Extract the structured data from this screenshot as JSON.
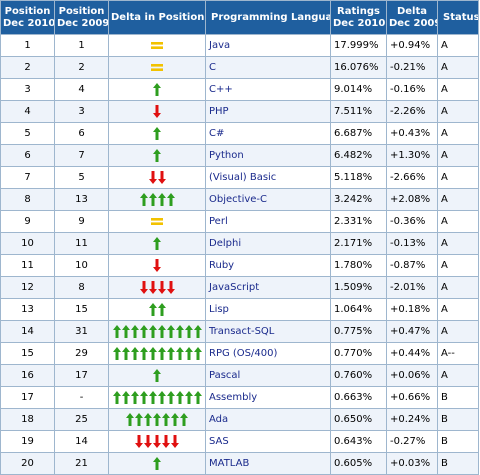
{
  "headers": {
    "pos_2010": "Position Dec 2010",
    "pos_2010_l1": "Position",
    "pos_2010_l2": "Dec 2010",
    "pos_2009_l1": "Position",
    "pos_2009_l2": "Dec 2009",
    "delta_pos": "Delta in Position",
    "language": "Programming Language",
    "ratings_l1": "Ratings",
    "ratings_l2": "Dec 2010",
    "delta_l1": "Delta",
    "delta_l2": "Dec 2009",
    "status": "Status"
  },
  "colors": {
    "header_bg": "#1f5f9f",
    "up_arrow": "#2e9e1f",
    "down_arrow": "#e01010",
    "equal": "#f2c200",
    "language_text": "#1a2a8c"
  },
  "rows": [
    {
      "pos2010": "1",
      "pos2009": "1",
      "delta": "equal",
      "count": 1,
      "lang": "Java",
      "rating": "17.999%",
      "change": "+0.94%",
      "status": "A"
    },
    {
      "pos2010": "2",
      "pos2009": "2",
      "delta": "equal",
      "count": 1,
      "lang": "C",
      "rating": "16.076%",
      "change": "-0.21%",
      "status": "A"
    },
    {
      "pos2010": "3",
      "pos2009": "4",
      "delta": "up",
      "count": 1,
      "lang": "C++",
      "rating": "9.014%",
      "change": "-0.16%",
      "status": "A"
    },
    {
      "pos2010": "4",
      "pos2009": "3",
      "delta": "down",
      "count": 1,
      "lang": "PHP",
      "rating": "7.511%",
      "change": "-2.26%",
      "status": "A"
    },
    {
      "pos2010": "5",
      "pos2009": "6",
      "delta": "up",
      "count": 1,
      "lang": "C#",
      "rating": "6.687%",
      "change": "+0.43%",
      "status": "A"
    },
    {
      "pos2010": "6",
      "pos2009": "7",
      "delta": "up",
      "count": 1,
      "lang": "Python",
      "rating": "6.482%",
      "change": "+1.30%",
      "status": "A"
    },
    {
      "pos2010": "7",
      "pos2009": "5",
      "delta": "down",
      "count": 2,
      "lang": "(Visual) Basic",
      "rating": "5.118%",
      "change": "-2.66%",
      "status": "A"
    },
    {
      "pos2010": "8",
      "pos2009": "13",
      "delta": "up",
      "count": 4,
      "lang": "Objective-C",
      "rating": "3.242%",
      "change": "+2.08%",
      "status": "A"
    },
    {
      "pos2010": "9",
      "pos2009": "9",
      "delta": "equal",
      "count": 1,
      "lang": "Perl",
      "rating": "2.331%",
      "change": "-0.36%",
      "status": "A"
    },
    {
      "pos2010": "10",
      "pos2009": "11",
      "delta": "up",
      "count": 1,
      "lang": "Delphi",
      "rating": "2.171%",
      "change": "-0.13%",
      "status": "A"
    },
    {
      "pos2010": "11",
      "pos2009": "10",
      "delta": "down",
      "count": 1,
      "lang": "Ruby",
      "rating": "1.780%",
      "change": "-0.87%",
      "status": "A"
    },
    {
      "pos2010": "12",
      "pos2009": "8",
      "delta": "down",
      "count": 4,
      "lang": "JavaScript",
      "rating": "1.509%",
      "change": "-2.01%",
      "status": "A"
    },
    {
      "pos2010": "13",
      "pos2009": "15",
      "delta": "up",
      "count": 2,
      "lang": "Lisp",
      "rating": "1.064%",
      "change": "+0.18%",
      "status": "A"
    },
    {
      "pos2010": "14",
      "pos2009": "31",
      "delta": "up",
      "count": 10,
      "lang": "Transact-SQL",
      "rating": "0.775%",
      "change": "+0.47%",
      "status": "A"
    },
    {
      "pos2010": "15",
      "pos2009": "29",
      "delta": "up",
      "count": 10,
      "lang": "RPG (OS/400)",
      "rating": "0.770%",
      "change": "+0.44%",
      "status": "A--"
    },
    {
      "pos2010": "16",
      "pos2009": "17",
      "delta": "up",
      "count": 1,
      "lang": "Pascal",
      "rating": "0.760%",
      "change": "+0.06%",
      "status": "A"
    },
    {
      "pos2010": "17",
      "pos2009": "-",
      "delta": "up",
      "count": 10,
      "lang": "Assembly",
      "rating": "0.663%",
      "change": "+0.66%",
      "status": "B"
    },
    {
      "pos2010": "18",
      "pos2009": "25",
      "delta": "up",
      "count": 7,
      "lang": "Ada",
      "rating": "0.650%",
      "change": "+0.24%",
      "status": "B"
    },
    {
      "pos2010": "19",
      "pos2009": "14",
      "delta": "down",
      "count": 5,
      "lang": "SAS",
      "rating": "0.643%",
      "change": "-0.27%",
      "status": "B"
    },
    {
      "pos2010": "20",
      "pos2009": "21",
      "delta": "up",
      "count": 1,
      "lang": "MATLAB",
      "rating": "0.605%",
      "change": "+0.03%",
      "status": "B"
    }
  ]
}
